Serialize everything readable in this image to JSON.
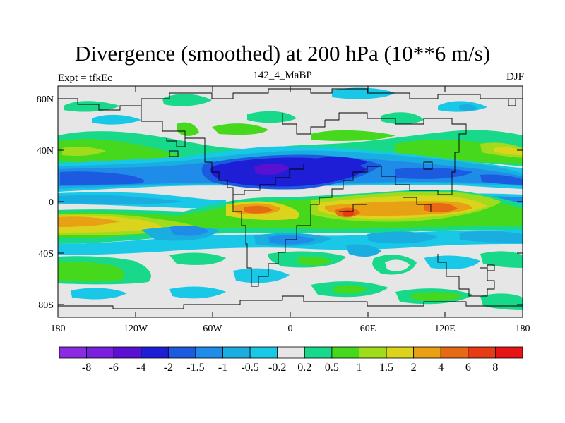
{
  "title": "Divergence (smoothed) at 200 hPa (10**6 m/s)",
  "left_label": "Expt = tfkEc",
  "center_label": "142_4_MaBP",
  "right_label": "DJF",
  "y_ticks": [
    "80N",
    "40N",
    "0",
    "40S",
    "80S"
  ],
  "x_ticks": [
    "180",
    "120W",
    "60W",
    "0",
    "60E",
    "120E",
    "180"
  ],
  "colorbar": {
    "labels": [
      "-8",
      "-6",
      "-4",
      "-2",
      "-1.5",
      "-1",
      "-0.5",
      "-0.2",
      "0.2",
      "0.5",
      "1",
      "1.5",
      "2",
      "4",
      "6",
      "8"
    ],
    "colors": [
      "#8a2be2",
      "#7a1fe0",
      "#5a10d0",
      "#1e1ed6",
      "#1c5ae0",
      "#1e8ce8",
      "#1aaee0",
      "#18c8e6",
      "#e6e6e6",
      "#18d88a",
      "#46d81c",
      "#a0dc1c",
      "#dcd41c",
      "#e8a014",
      "#e66a14",
      "#e63c14",
      "#e61414"
    ]
  },
  "colors": {
    "missing": "#e6e6e6",
    "coast": "#000000"
  }
}
